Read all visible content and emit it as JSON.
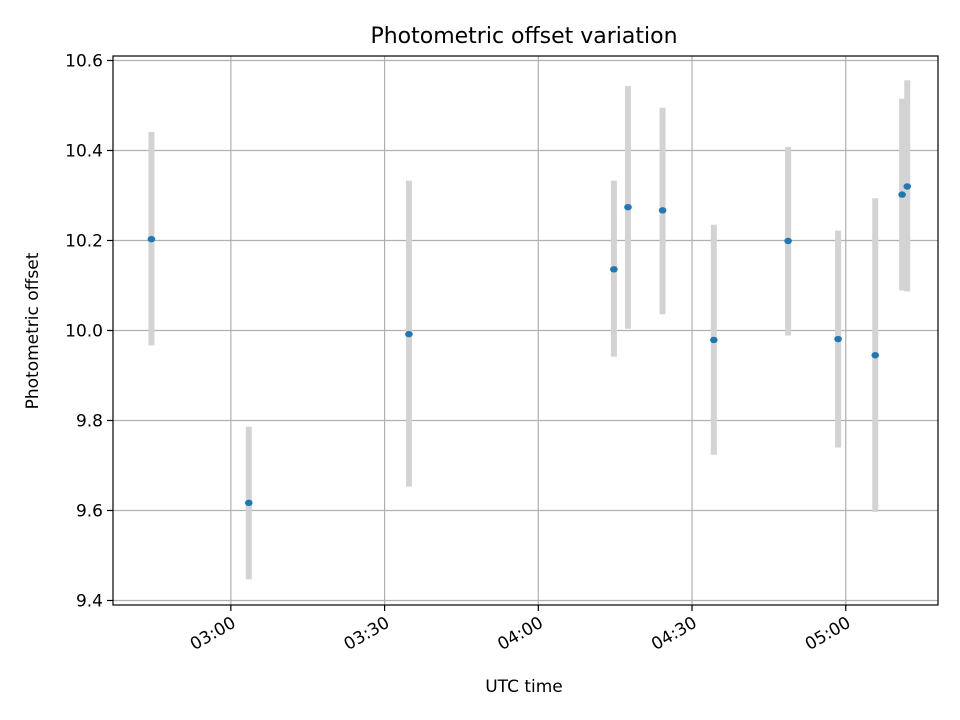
{
  "chart_data": {
    "type": "scatter",
    "title": "Photometric offset variation",
    "xlabel": "UTC time",
    "ylabel": "Photometric offset",
    "xlim": [
      "02:37",
      "05:18"
    ],
    "ylim": [
      9.39,
      10.61
    ],
    "x_ticks": [
      "03:00",
      "03:30",
      "04:00",
      "04:30",
      "05:00"
    ],
    "y_ticks": [
      9.4,
      9.6,
      9.8,
      10.0,
      10.2,
      10.4,
      10.6
    ],
    "y_tick_labels": [
      "9.4",
      "9.6",
      "9.8",
      "10.0",
      "10.2",
      "10.4",
      "10.6"
    ],
    "grid": true,
    "colors": {
      "point": "#1f77b4",
      "errorbar": "#d3d3d3",
      "grid": "#b0b0b0"
    },
    "series": [
      {
        "points": [
          {
            "x": "02:44:30",
            "y": 10.203,
            "ylow": 9.967,
            "yhigh": 10.441
          },
          {
            "x": "03:03:30",
            "y": 9.617,
            "ylow": 9.447,
            "yhigh": 9.786
          },
          {
            "x": "03:34:45",
            "y": 9.992,
            "ylow": 9.653,
            "yhigh": 10.333
          },
          {
            "x": "04:14:45",
            "y": 10.136,
            "ylow": 9.942,
            "yhigh": 10.333
          },
          {
            "x": "04:17:30",
            "y": 10.274,
            "ylow": 10.004,
            "yhigh": 10.543
          },
          {
            "x": "04:24:15",
            "y": 10.267,
            "ylow": 10.036,
            "yhigh": 10.495
          },
          {
            "x": "04:34:15",
            "y": 9.979,
            "ylow": 9.724,
            "yhigh": 10.235
          },
          {
            "x": "04:48:45",
            "y": 10.199,
            "ylow": 9.989,
            "yhigh": 10.408
          },
          {
            "x": "04:58:30",
            "y": 9.981,
            "ylow": 9.74,
            "yhigh": 10.222
          },
          {
            "x": "05:05:45",
            "y": 9.945,
            "ylow": 9.597,
            "yhigh": 10.294
          },
          {
            "x": "05:11:00",
            "y": 10.302,
            "ylow": 10.089,
            "yhigh": 10.515
          },
          {
            "x": "05:12:00",
            "y": 10.32,
            "ylow": 10.087,
            "yhigh": 10.556
          }
        ]
      }
    ]
  }
}
